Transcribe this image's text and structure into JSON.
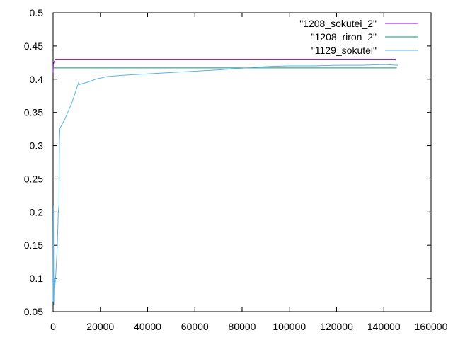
{
  "chart_data": {
    "type": "line",
    "title": "",
    "xlabel": "",
    "ylabel": "",
    "xlim": [
      0,
      160000
    ],
    "ylim": [
      0.05,
      0.5
    ],
    "x_ticks": [
      0,
      20000,
      40000,
      60000,
      80000,
      100000,
      120000,
      140000,
      160000
    ],
    "y_ticks": [
      0.05,
      0.1,
      0.15,
      0.2,
      0.25,
      0.3,
      0.35,
      0.4,
      0.45,
      0.5
    ],
    "x_tick_labels": [
      "0",
      "20000",
      "40000",
      "60000",
      "80000",
      "100000",
      "120000",
      "140000",
      "160000"
    ],
    "y_tick_labels": [
      "0.05",
      "0.1",
      "0.15",
      "0.2",
      "0.25",
      "0.3",
      "0.35",
      "0.4",
      "0.45",
      "0.5"
    ],
    "grid": false,
    "legend_position": "top-right",
    "series": [
      {
        "name": "\"1208_sokutei_2\"",
        "color": "#9400d3",
        "points": [
          [
            0,
            0.41
          ],
          [
            100,
            0.422
          ],
          [
            300,
            0.425
          ],
          [
            1000,
            0.43
          ],
          [
            145000,
            0.43
          ]
        ]
      },
      {
        "name": "\"1208_riron_2\"",
        "color": "#009e73",
        "points": [
          [
            0,
            0.417
          ],
          [
            145500,
            0.417
          ]
        ]
      },
      {
        "name": "\"1129_sokutei\"",
        "color": "#56b4e9",
        "points": [
          [
            0,
            0.065
          ],
          [
            150,
            0.21
          ],
          [
            300,
            0.06
          ],
          [
            500,
            0.1
          ],
          [
            800,
            0.09
          ],
          [
            1200,
            0.11
          ],
          [
            1800,
            0.15
          ],
          [
            2200,
            0.2
          ],
          [
            2500,
            0.21
          ],
          [
            2700,
            0.31
          ],
          [
            2900,
            0.326
          ],
          [
            5000,
            0.34
          ],
          [
            8000,
            0.365
          ],
          [
            10800,
            0.395
          ],
          [
            11200,
            0.392
          ],
          [
            15000,
            0.396
          ],
          [
            18000,
            0.4
          ],
          [
            23000,
            0.404
          ],
          [
            30000,
            0.406
          ],
          [
            40000,
            0.408
          ],
          [
            50000,
            0.41
          ],
          [
            60000,
            0.412
          ],
          [
            70000,
            0.414
          ],
          [
            78000,
            0.416
          ],
          [
            90000,
            0.419
          ],
          [
            100000,
            0.42
          ],
          [
            110000,
            0.42
          ],
          [
            120000,
            0.421
          ],
          [
            130000,
            0.421
          ],
          [
            140000,
            0.422
          ],
          [
            146000,
            0.421
          ]
        ]
      }
    ]
  }
}
